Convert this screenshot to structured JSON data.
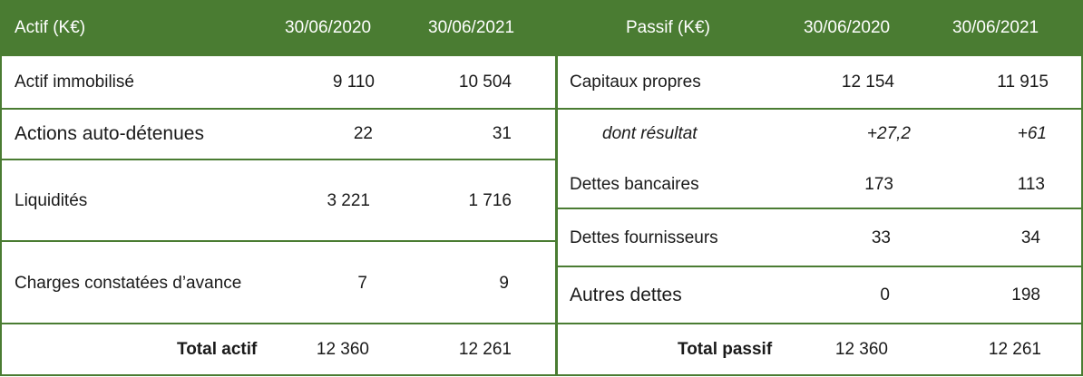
{
  "header": {
    "actif_title": "Actif (K€)",
    "actif_date1": "30/06/2020",
    "actif_date2": "30/06/2021",
    "passif_title": "Passif (K€)",
    "passif_date1": "30/06/2020",
    "passif_date2": "30/06/2021"
  },
  "actif": [
    {
      "label": "Actif immobilisé",
      "v2020": "9 110",
      "v2021": "10 504"
    },
    {
      "label": "Actions auto-détenues",
      "v2020": "22",
      "v2021": "31"
    },
    {
      "label": "Liquidités",
      "v2020": "3 221",
      "v2021": "1 716"
    },
    {
      "label": "Charges constatées d’avance",
      "v2020": "7",
      "v2021": "9"
    }
  ],
  "passif": [
    {
      "label": "Capitaux propres",
      "v2020": "12 154",
      "v2021": "11 915"
    },
    {
      "label": "dont résultat",
      "v2020": "+27,2",
      "v2021": "+61"
    },
    {
      "label": "Dettes bancaires",
      "v2020": "173",
      "v2021": "113"
    },
    {
      "label": "Dettes fournisseurs",
      "v2020": "33",
      "v2021": "34"
    },
    {
      "label": "Autres dettes",
      "v2020": "0",
      "v2021": "198"
    }
  ],
  "totals": {
    "actif_label": "Total actif",
    "actif_2020": "12 360",
    "actif_2021": "12 261",
    "passif_label": "Total passif",
    "passif_2020": "12 360",
    "passif_2021": "12 261"
  }
}
